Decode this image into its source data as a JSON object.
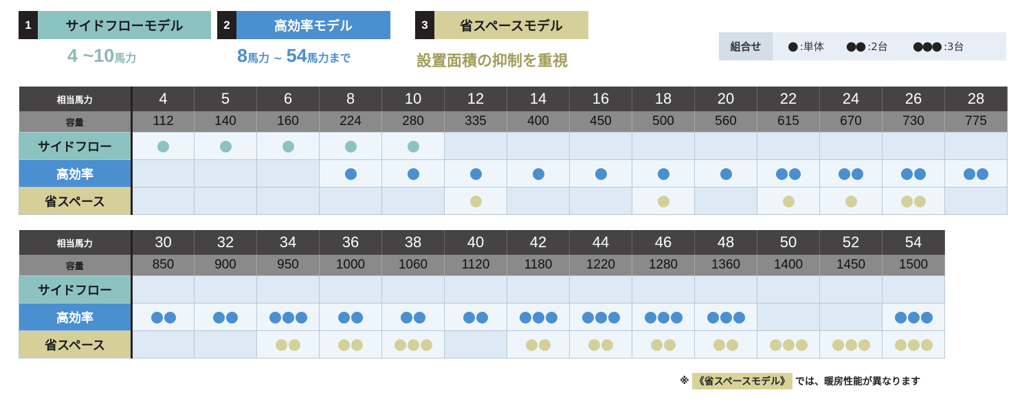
{
  "colors": {
    "side": "#8cc3c1",
    "eff": "#4a8fcf",
    "space": "#d5d09a",
    "dot_side": "#8cc3c1",
    "dot_eff": "#4a8fcf",
    "dot_space": "#d5d09a",
    "sub_side": "#8ab9b6",
    "sub_eff": "#4a8fcf",
    "sub_space": "#a29d5a"
  },
  "models": [
    {
      "num": "1",
      "label": "サイドフローモデル",
      "sub_a": "4 ~10",
      "sub_unit_a": "馬力",
      "sub_b": "",
      "sub_unit_b": ""
    },
    {
      "num": "2",
      "label": "高効率モデル",
      "sub_a": "8",
      "sub_unit_a": "馬力 ~ ",
      "sub_b": "54",
      "sub_unit_b": "馬力まで"
    },
    {
      "num": "3",
      "label": "省スペースモデル",
      "sub_a": "設置面積の抑制を重視",
      "sub_unit_a": "",
      "sub_b": "",
      "sub_unit_b": ""
    }
  ],
  "legend": {
    "title": "組合せ",
    "items": [
      {
        "dots": "●",
        "text": ":単体"
      },
      {
        "dots": "●●",
        "text": ":2台"
      },
      {
        "dots": "●●●",
        "text": ":3台"
      }
    ]
  },
  "row_labels": {
    "hp": "相当馬力",
    "cap": "容量",
    "side": "サイドフロー",
    "eff": "高効率",
    "space": "省スペース"
  },
  "tables": [
    {
      "hp": [
        "4",
        "5",
        "6",
        "8",
        "10",
        "12",
        "14",
        "16",
        "18",
        "20",
        "22",
        "24",
        "26",
        "28"
      ],
      "cap": [
        "112",
        "140",
        "160",
        "224",
        "280",
        "335",
        "400",
        "450",
        "500",
        "560",
        "615",
        "670",
        "730",
        "775"
      ],
      "side": [
        1,
        1,
        1,
        1,
        1,
        0,
        0,
        0,
        0,
        0,
        0,
        0,
        0,
        0
      ],
      "eff": [
        0,
        0,
        0,
        1,
        1,
        1,
        1,
        1,
        1,
        1,
        2,
        2,
        2,
        2
      ],
      "space": [
        0,
        0,
        0,
        0,
        0,
        1,
        0,
        0,
        1,
        0,
        1,
        1,
        2,
        0
      ]
    },
    {
      "hp": [
        "30",
        "32",
        "34",
        "36",
        "38",
        "40",
        "42",
        "44",
        "46",
        "48",
        "50",
        "52",
        "54"
      ],
      "cap": [
        "850",
        "900",
        "950",
        "1000",
        "1060",
        "1120",
        "1180",
        "1220",
        "1280",
        "1360",
        "1400",
        "1450",
        "1500"
      ],
      "side": [
        0,
        0,
        0,
        0,
        0,
        0,
        0,
        0,
        0,
        0,
        0,
        0,
        0
      ],
      "eff": [
        2,
        2,
        3,
        2,
        2,
        2,
        3,
        3,
        3,
        3,
        0,
        0,
        3
      ],
      "space": [
        0,
        0,
        2,
        2,
        3,
        0,
        2,
        2,
        2,
        2,
        3,
        3,
        3
      ]
    }
  ],
  "footnote": {
    "mark": "※",
    "highlight": "《省スペースモデル》",
    "text": "では、暖房性能が異なります"
  }
}
